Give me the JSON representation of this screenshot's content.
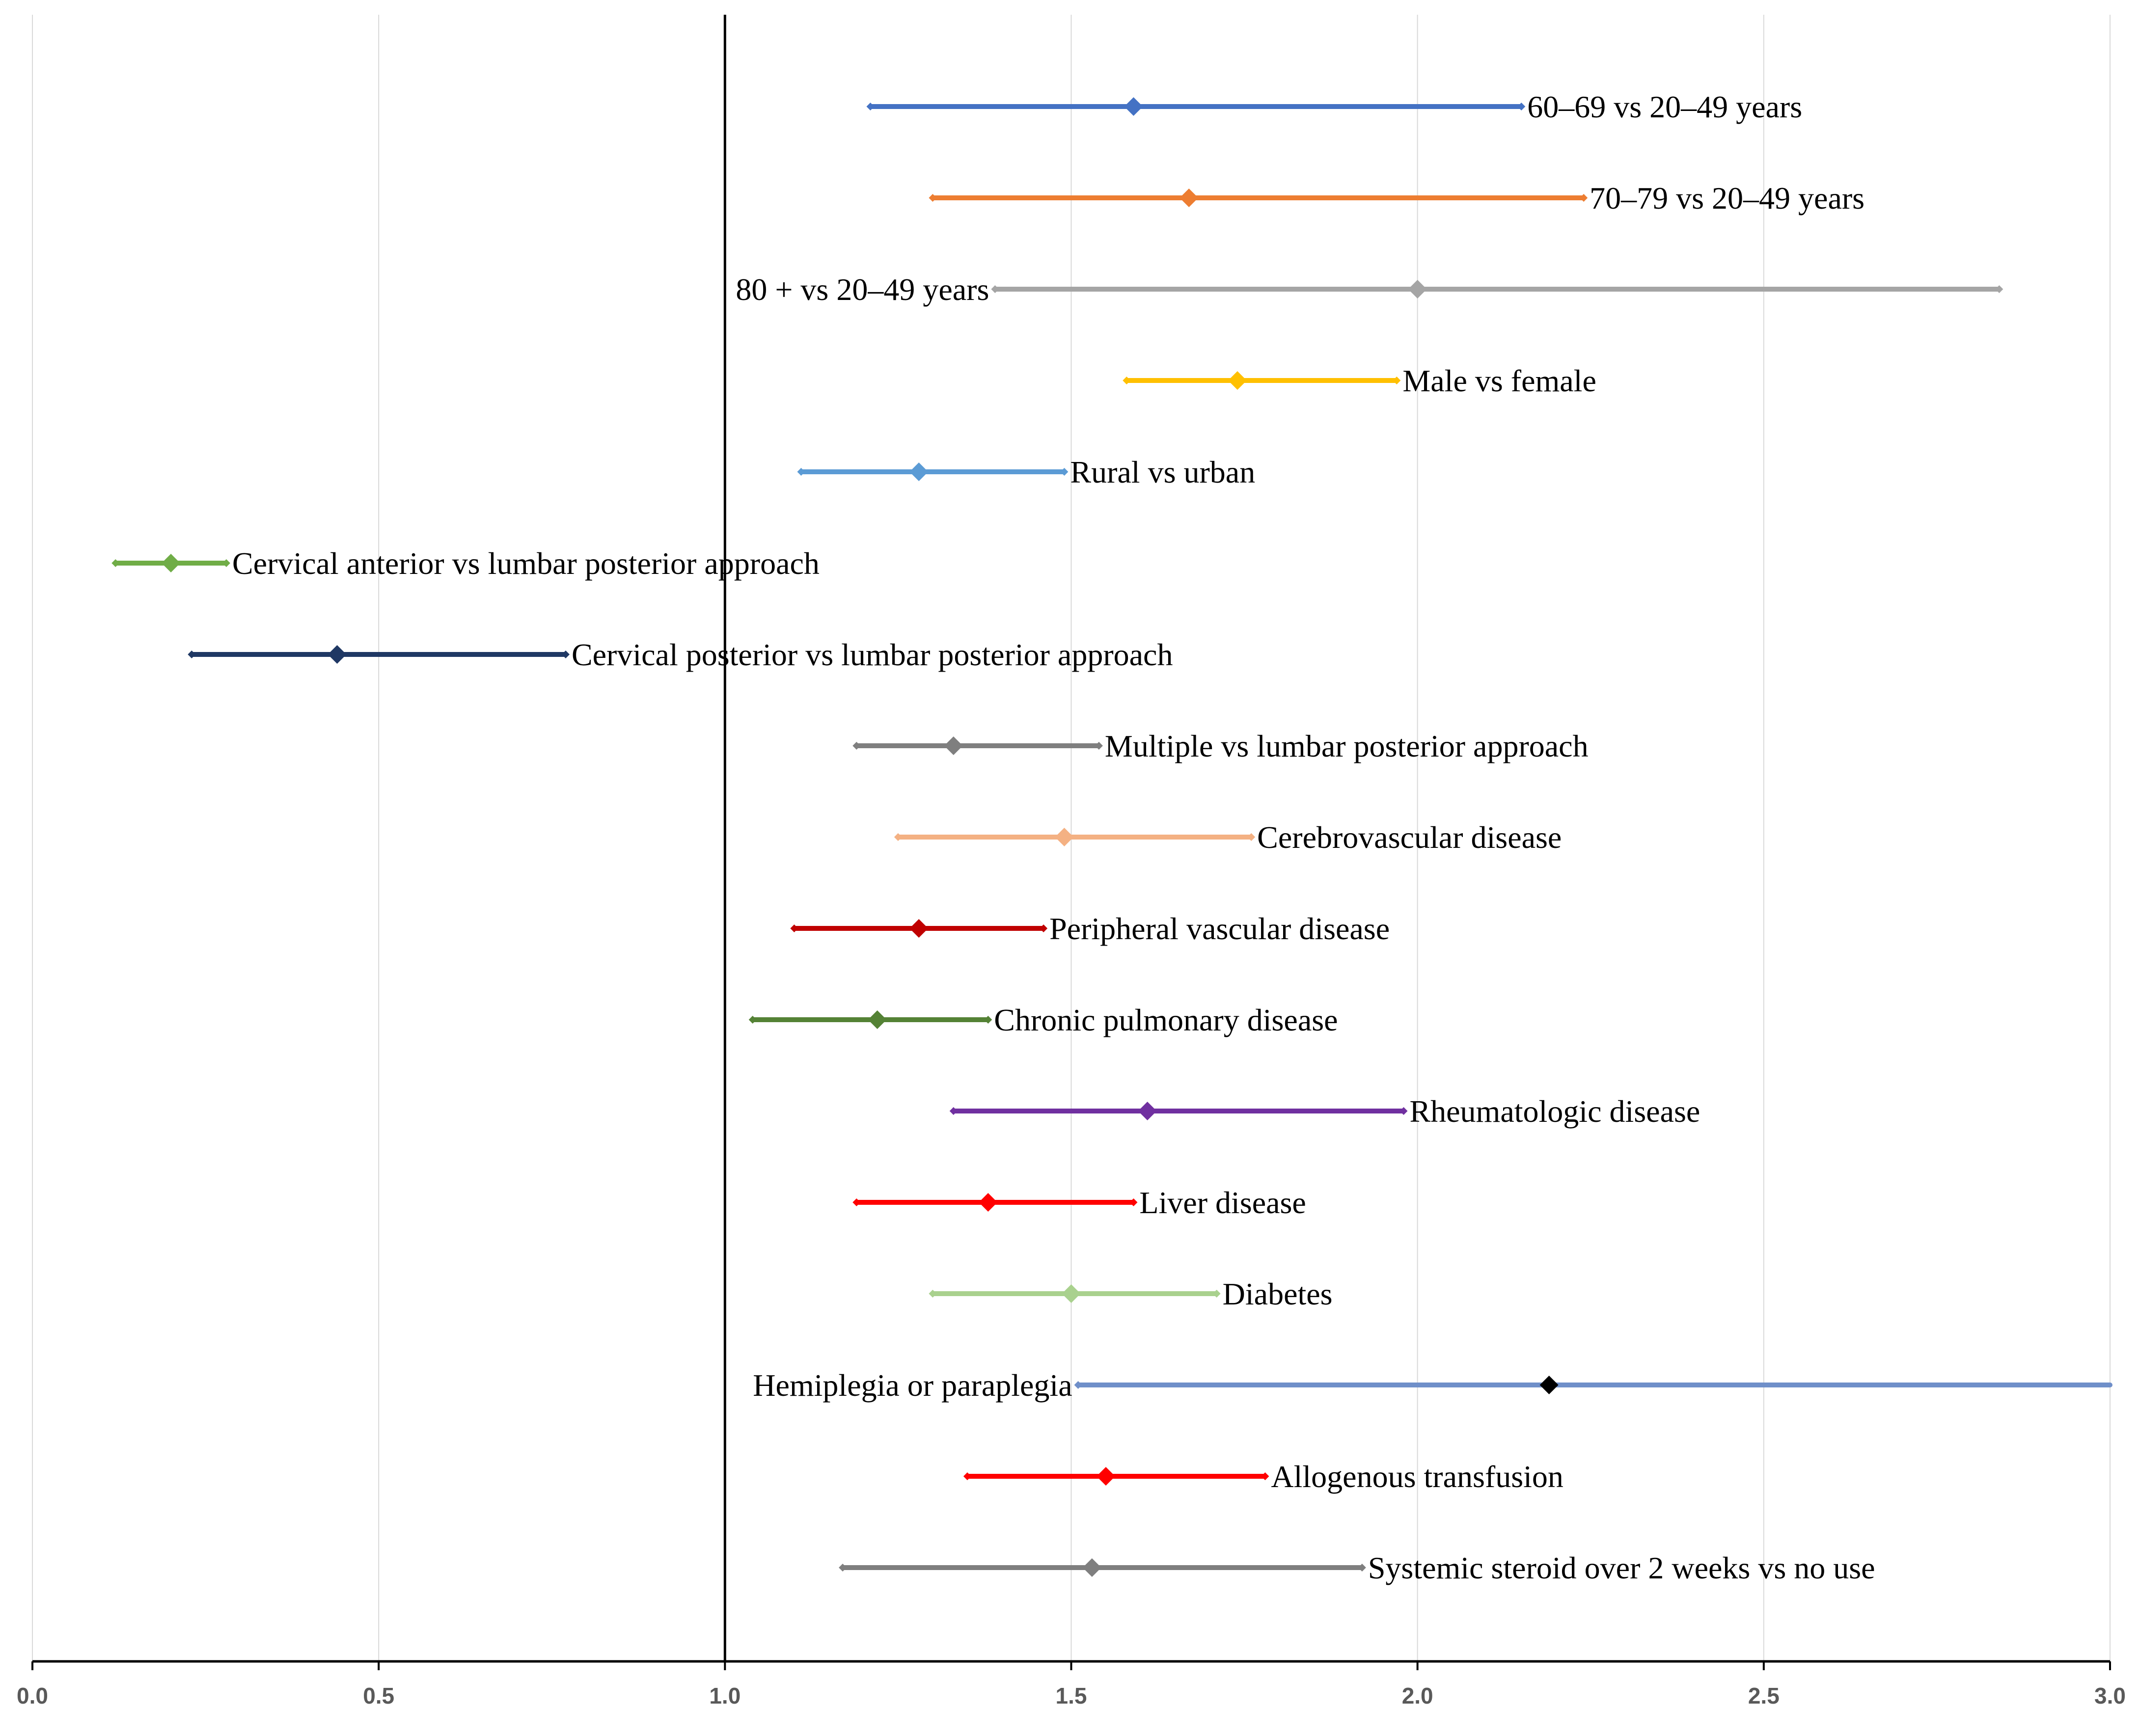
{
  "chart_data": {
    "type": "forest",
    "title": "",
    "xlabel": "",
    "ylabel": "",
    "xlim": [
      0.0,
      3.0
    ],
    "reference_line": 1.0,
    "grid": "vertical",
    "x_tick_labels": [
      "0.0",
      "0.5",
      "1.0",
      "1.5",
      "2.0",
      "2.5",
      "3.0"
    ],
    "x_ticks": [
      0.0,
      0.5,
      1.0,
      1.5,
      2.0,
      2.5,
      3.0
    ],
    "series": [
      {
        "name": "60–69 vs 20–49 years",
        "estimate": 1.59,
        "lower": 1.21,
        "upper": 2.15,
        "color": "#4472C4",
        "label_side": "right"
      },
      {
        "name": "70–79 vs 20–49 years",
        "estimate": 1.67,
        "lower": 1.3,
        "upper": 2.24,
        "color": "#ED7D31",
        "label_side": "right"
      },
      {
        "name": "80 + vs 20–49 years",
        "estimate": 2.0,
        "lower": 1.39,
        "upper": 2.84,
        "color": "#A5A5A5",
        "label_side": "left"
      },
      {
        "name": "Male vs female",
        "estimate": 1.74,
        "lower": 1.58,
        "upper": 1.97,
        "color": "#FFC000",
        "label_side": "right"
      },
      {
        "name": "Rural vs urban",
        "estimate": 1.28,
        "lower": 1.11,
        "upper": 1.49,
        "color": "#5B9BD5",
        "label_side": "right"
      },
      {
        "name": "Cervical anterior vs lumbar posterior approach",
        "estimate": 0.2,
        "lower": 0.12,
        "upper": 0.28,
        "color": "#70AD47",
        "label_side": "right"
      },
      {
        "name": "Cervical posterior vs lumbar posterior approach",
        "estimate": 0.44,
        "lower": 0.23,
        "upper": 0.77,
        "color": "#1F3864",
        "label_side": "right"
      },
      {
        "name": "Multiple vs lumbar posterior approach",
        "estimate": 1.33,
        "lower": 1.19,
        "upper": 1.54,
        "color": "#7F7F7F",
        "label_side": "right"
      },
      {
        "name": "Cerebrovascular disease",
        "estimate": 1.49,
        "lower": 1.25,
        "upper": 1.76,
        "color": "#F4B183",
        "label_side": "right"
      },
      {
        "name": "Peripheral vascular disease",
        "estimate": 1.28,
        "lower": 1.1,
        "upper": 1.46,
        "color": "#C00000",
        "label_side": "right"
      },
      {
        "name": "Chronic pulmonary disease",
        "estimate": 1.22,
        "lower": 1.04,
        "upper": 1.38,
        "color": "#548235",
        "label_side": "right"
      },
      {
        "name": "Rheumatologic disease",
        "estimate": 1.61,
        "lower": 1.33,
        "upper": 1.98,
        "color": "#7030A0",
        "label_side": "right"
      },
      {
        "name": "Liver disease",
        "estimate": 1.38,
        "lower": 1.19,
        "upper": 1.59,
        "color": "#FF0000",
        "label_side": "right"
      },
      {
        "name": "Diabetes",
        "estimate": 1.5,
        "lower": 1.3,
        "upper": 1.71,
        "color": "#A9D18E",
        "label_side": "right"
      },
      {
        "name": "Hemiplegia or paraplegia",
        "estimate": 2.19,
        "lower": 1.51,
        "upper": 3.0,
        "color": "#6F8FC9",
        "marker_color": "#000000",
        "label_side": "left"
      },
      {
        "name": "Allogenous transfusion",
        "estimate": 1.55,
        "lower": 1.35,
        "upper": 1.78,
        "color": "#FF0000",
        "label_side": "right"
      },
      {
        "name": "Systemic steroid over 2 weeks vs no use",
        "estimate": 1.53,
        "lower": 1.17,
        "upper": 1.92,
        "color": "#7F7F7F",
        "label_side": "right"
      }
    ]
  }
}
